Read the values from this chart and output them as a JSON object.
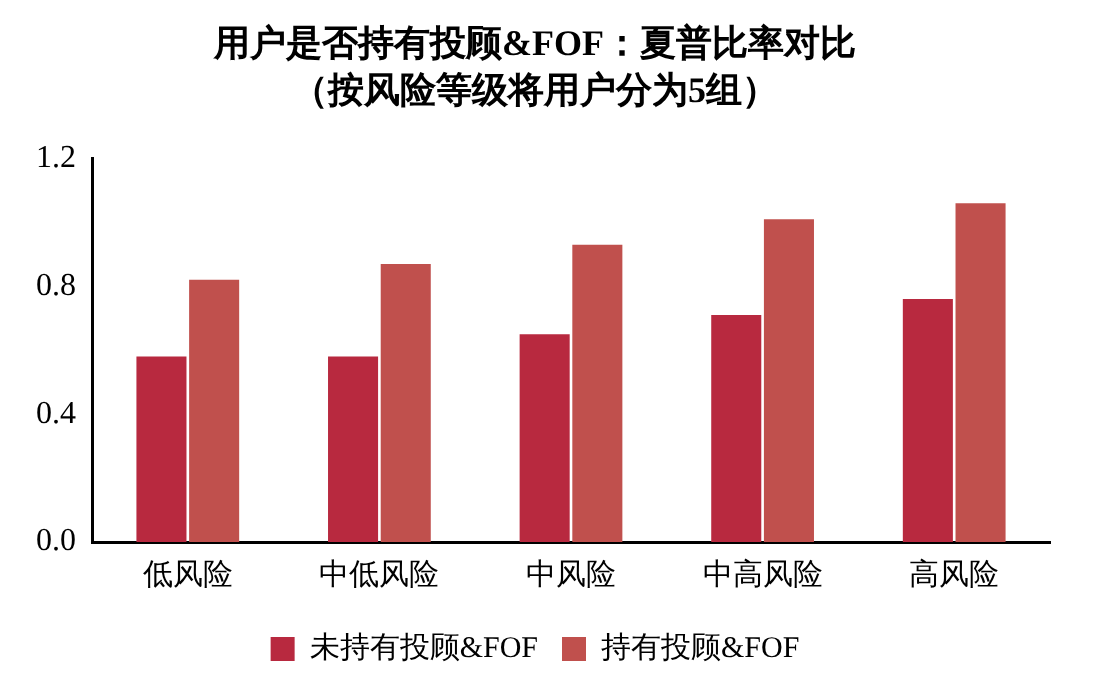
{
  "chart_data": {
    "type": "bar",
    "title": "用户是否持有投顾&FOF：夏普比率对比",
    "subtitle": "（按风险等级将用户分为5组）",
    "categories": [
      "低风险",
      "中低风险",
      "中风险",
      "中高风险",
      "高风险"
    ],
    "series": [
      {
        "name": "未持有投顾&FOF",
        "color": "#b8293f",
        "values": [
          0.58,
          0.58,
          0.65,
          0.71,
          0.76
        ]
      },
      {
        "name": "持有投顾&FOF",
        "color": "#c0504d",
        "values": [
          0.82,
          0.87,
          0.93,
          1.01,
          1.06
        ]
      }
    ],
    "ylim": [
      0,
      1.2
    ],
    "yticks": [
      {
        "value": 0,
        "label": "0.0"
      },
      {
        "value": 0.4,
        "label": "0.4"
      },
      {
        "value": 0.8,
        "label": "0.8"
      },
      {
        "value": 1.2,
        "label": "1.2"
      }
    ],
    "grid": false,
    "legend": "bottom"
  }
}
